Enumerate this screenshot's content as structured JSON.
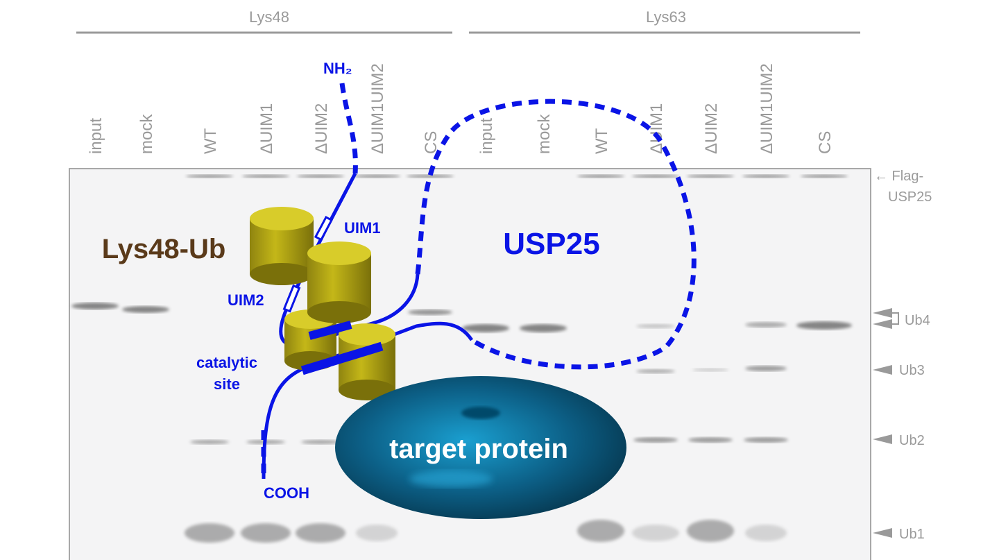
{
  "groups": {
    "left": "Lys48",
    "right": "Lys63"
  },
  "lanes_left": [
    "input",
    "mock",
    "WT",
    "ΔUIM1",
    "ΔUIM2",
    "ΔUIM1UIM2",
    "CS"
  ],
  "lanes_right": [
    "input",
    "mock",
    "WT",
    "ΔUIM1",
    "ΔUIM2",
    "ΔUIM1UIM2",
    "CS"
  ],
  "markers": {
    "flag_line1": "← Flag-",
    "flag_line2": "USP25",
    "ub4": "Ub4",
    "ub3": "Ub3",
    "ub2": "Ub2",
    "ub1": "Ub1"
  },
  "overlay": {
    "nh2": "NH₂",
    "uim1": "UIM1",
    "uim2": "UIM2",
    "catalytic_line1": "catalytic",
    "catalytic_line2": "site",
    "cooh": "COOH",
    "usp25": "USP25",
    "lys48_ub": "Lys48-Ub",
    "target": "target protein"
  },
  "colors": {
    "protein_line": "#0a14e6",
    "ubiquitin": "#c8bc1a",
    "lys48_label": "#5a3a1a",
    "target": "#0e6d96",
    "gel_text": "#9a9a9a"
  }
}
